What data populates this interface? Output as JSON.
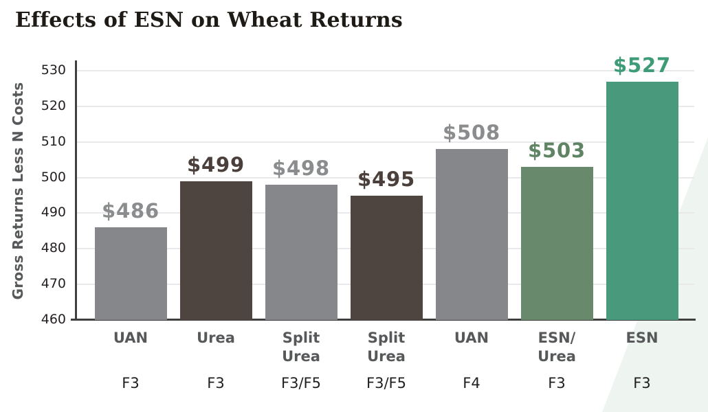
{
  "title": "Effects of ESN on Wheat Returns",
  "chart_data": {
    "type": "bar",
    "title": "Effects of ESN on Wheat Returns",
    "ylabel": "Gross Returns Less N Costs",
    "xlabel": "",
    "ylim": [
      460,
      530
    ],
    "yticks": [
      460,
      470,
      480,
      490,
      500,
      510,
      520,
      530
    ],
    "grid": true,
    "legend_position": "none",
    "categories": [
      "UAN",
      "Urea",
      "Split Urea",
      "Split Urea",
      "UAN",
      "ESN/Urea",
      "ESN"
    ],
    "bars": [
      {
        "category": "UAN",
        "label_lines": [
          "UAN"
        ],
        "timing": "F3",
        "value": 486,
        "value_label": "$486",
        "bar_color": "#85878A",
        "value_color": "#8A8C8E"
      },
      {
        "category": "Urea",
        "label_lines": [
          "Urea"
        ],
        "timing": "F3",
        "value": 499,
        "value_label": "$499",
        "bar_color": "#4E4440",
        "value_color": "#4A3F3A"
      },
      {
        "category": "Split Urea",
        "label_lines": [
          "Split",
          "Urea"
        ],
        "timing": "F3/F5",
        "value": 498,
        "value_label": "$498",
        "bar_color": "#85878A",
        "value_color": "#8A8C8E"
      },
      {
        "category": "Split Urea",
        "label_lines": [
          "Split",
          "Urea"
        ],
        "timing": "F3/F5",
        "value": 495,
        "value_label": "$495",
        "bar_color": "#4E4440",
        "value_color": "#4A3F3A"
      },
      {
        "category": "UAN",
        "label_lines": [
          "UAN"
        ],
        "timing": "F4",
        "value": 508,
        "value_label": "$508",
        "bar_color": "#85878A",
        "value_color": "#8A8C8E"
      },
      {
        "category": "ESN/Urea",
        "label_lines": [
          "ESN/",
          "Urea"
        ],
        "timing": "F3",
        "value": 503,
        "value_label": "$503",
        "bar_color": "#68896B",
        "value_color": "#5F8463"
      },
      {
        "category": "ESN",
        "label_lines": [
          "ESN"
        ],
        "timing": "F3",
        "value": 527,
        "value_label": "$527",
        "bar_color": "#499A7C",
        "value_color": "#3E9B77"
      }
    ]
  },
  "colors": {
    "title": "#1E1A16",
    "axis": "#3F3F3F",
    "grid": "#E9E9EB",
    "tick": "#231F20",
    "x_label": "#56585A",
    "timing": "#1F1F1F",
    "y_title": "#56585A",
    "watermark": "#EEF4EF"
  }
}
